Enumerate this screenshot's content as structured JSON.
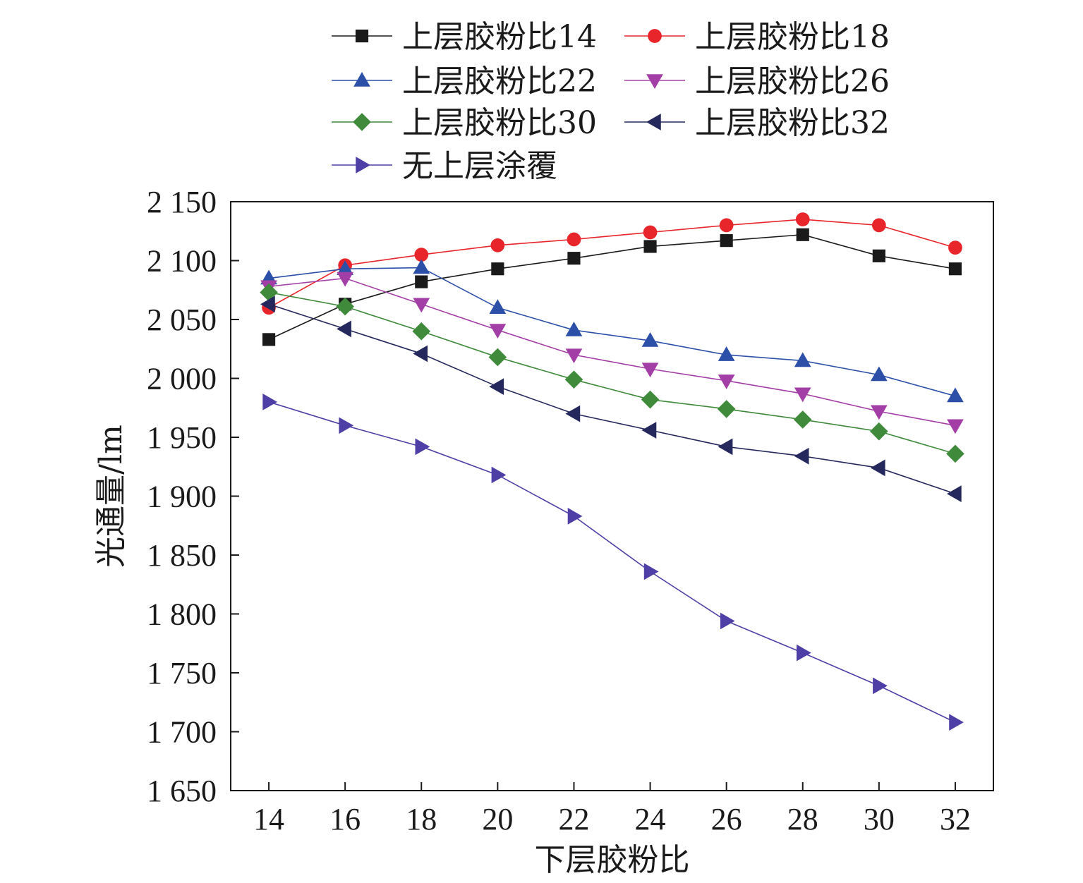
{
  "chart_data": {
    "type": "line",
    "xlabel": "下层胶粉比",
    "ylabel": "光通量/lm",
    "x": [
      14,
      16,
      18,
      20,
      22,
      24,
      26,
      28,
      30,
      32
    ],
    "xlim": [
      13,
      33
    ],
    "ylim": [
      1650,
      2150
    ],
    "x_ticks": [
      14,
      16,
      18,
      20,
      22,
      24,
      26,
      28,
      30,
      32
    ],
    "y_ticks": [
      1650,
      1700,
      1750,
      1800,
      1850,
      1900,
      1950,
      2000,
      2050,
      2100,
      2150
    ],
    "y_tick_labels": [
      "1 650",
      "1 700",
      "1 750",
      "1 800",
      "1 850",
      "1 900",
      "1 950",
      "2 000",
      "2 050",
      "2 100",
      "2 150"
    ],
    "grid": false,
    "legend_position": "top, above plot, two columns",
    "series": [
      {
        "name": "上层胶粉比14",
        "color": "#1a1a1a",
        "marker": "square",
        "values": [
          2033,
          2063,
          2082,
          2093,
          2102,
          2112,
          2117,
          2122,
          2104,
          2093
        ]
      },
      {
        "name": "上层胶粉比18",
        "color": "#e8252b",
        "marker": "circle",
        "values": [
          2060,
          2096,
          2105,
          2113,
          2118,
          2124,
          2130,
          2135,
          2130,
          2111
        ]
      },
      {
        "name": "上层胶粉比22",
        "color": "#2c4fa8",
        "marker": "triangle-up",
        "values": [
          2085,
          2093,
          2094,
          2060,
          2041,
          2032,
          2020,
          2015,
          2003,
          1985
        ]
      },
      {
        "name": "上层胶粉比26",
        "color": "#a33ea6",
        "marker": "triangle-down",
        "values": [
          2078,
          2085,
          2063,
          2041,
          2020,
          2008,
          1998,
          1987,
          1972,
          1960
        ]
      },
      {
        "name": "上层胶粉比30",
        "color": "#3f8a3b",
        "marker": "diamond",
        "values": [
          2073,
          2061,
          2040,
          2018,
          1999,
          1982,
          1974,
          1965,
          1955,
          1936
        ]
      },
      {
        "name": "上层胶粉比32",
        "color": "#25285c",
        "marker": "triangle-left",
        "values": [
          2063,
          2042,
          2021,
          1993,
          1970,
          1956,
          1942,
          1934,
          1924,
          1902
        ]
      },
      {
        "name": "无上层涂覆",
        "color": "#4e3fa6",
        "marker": "triangle-right",
        "values": [
          1980,
          1960,
          1942,
          1918,
          1883,
          1836,
          1794,
          1767,
          1739,
          1708
        ]
      }
    ]
  }
}
